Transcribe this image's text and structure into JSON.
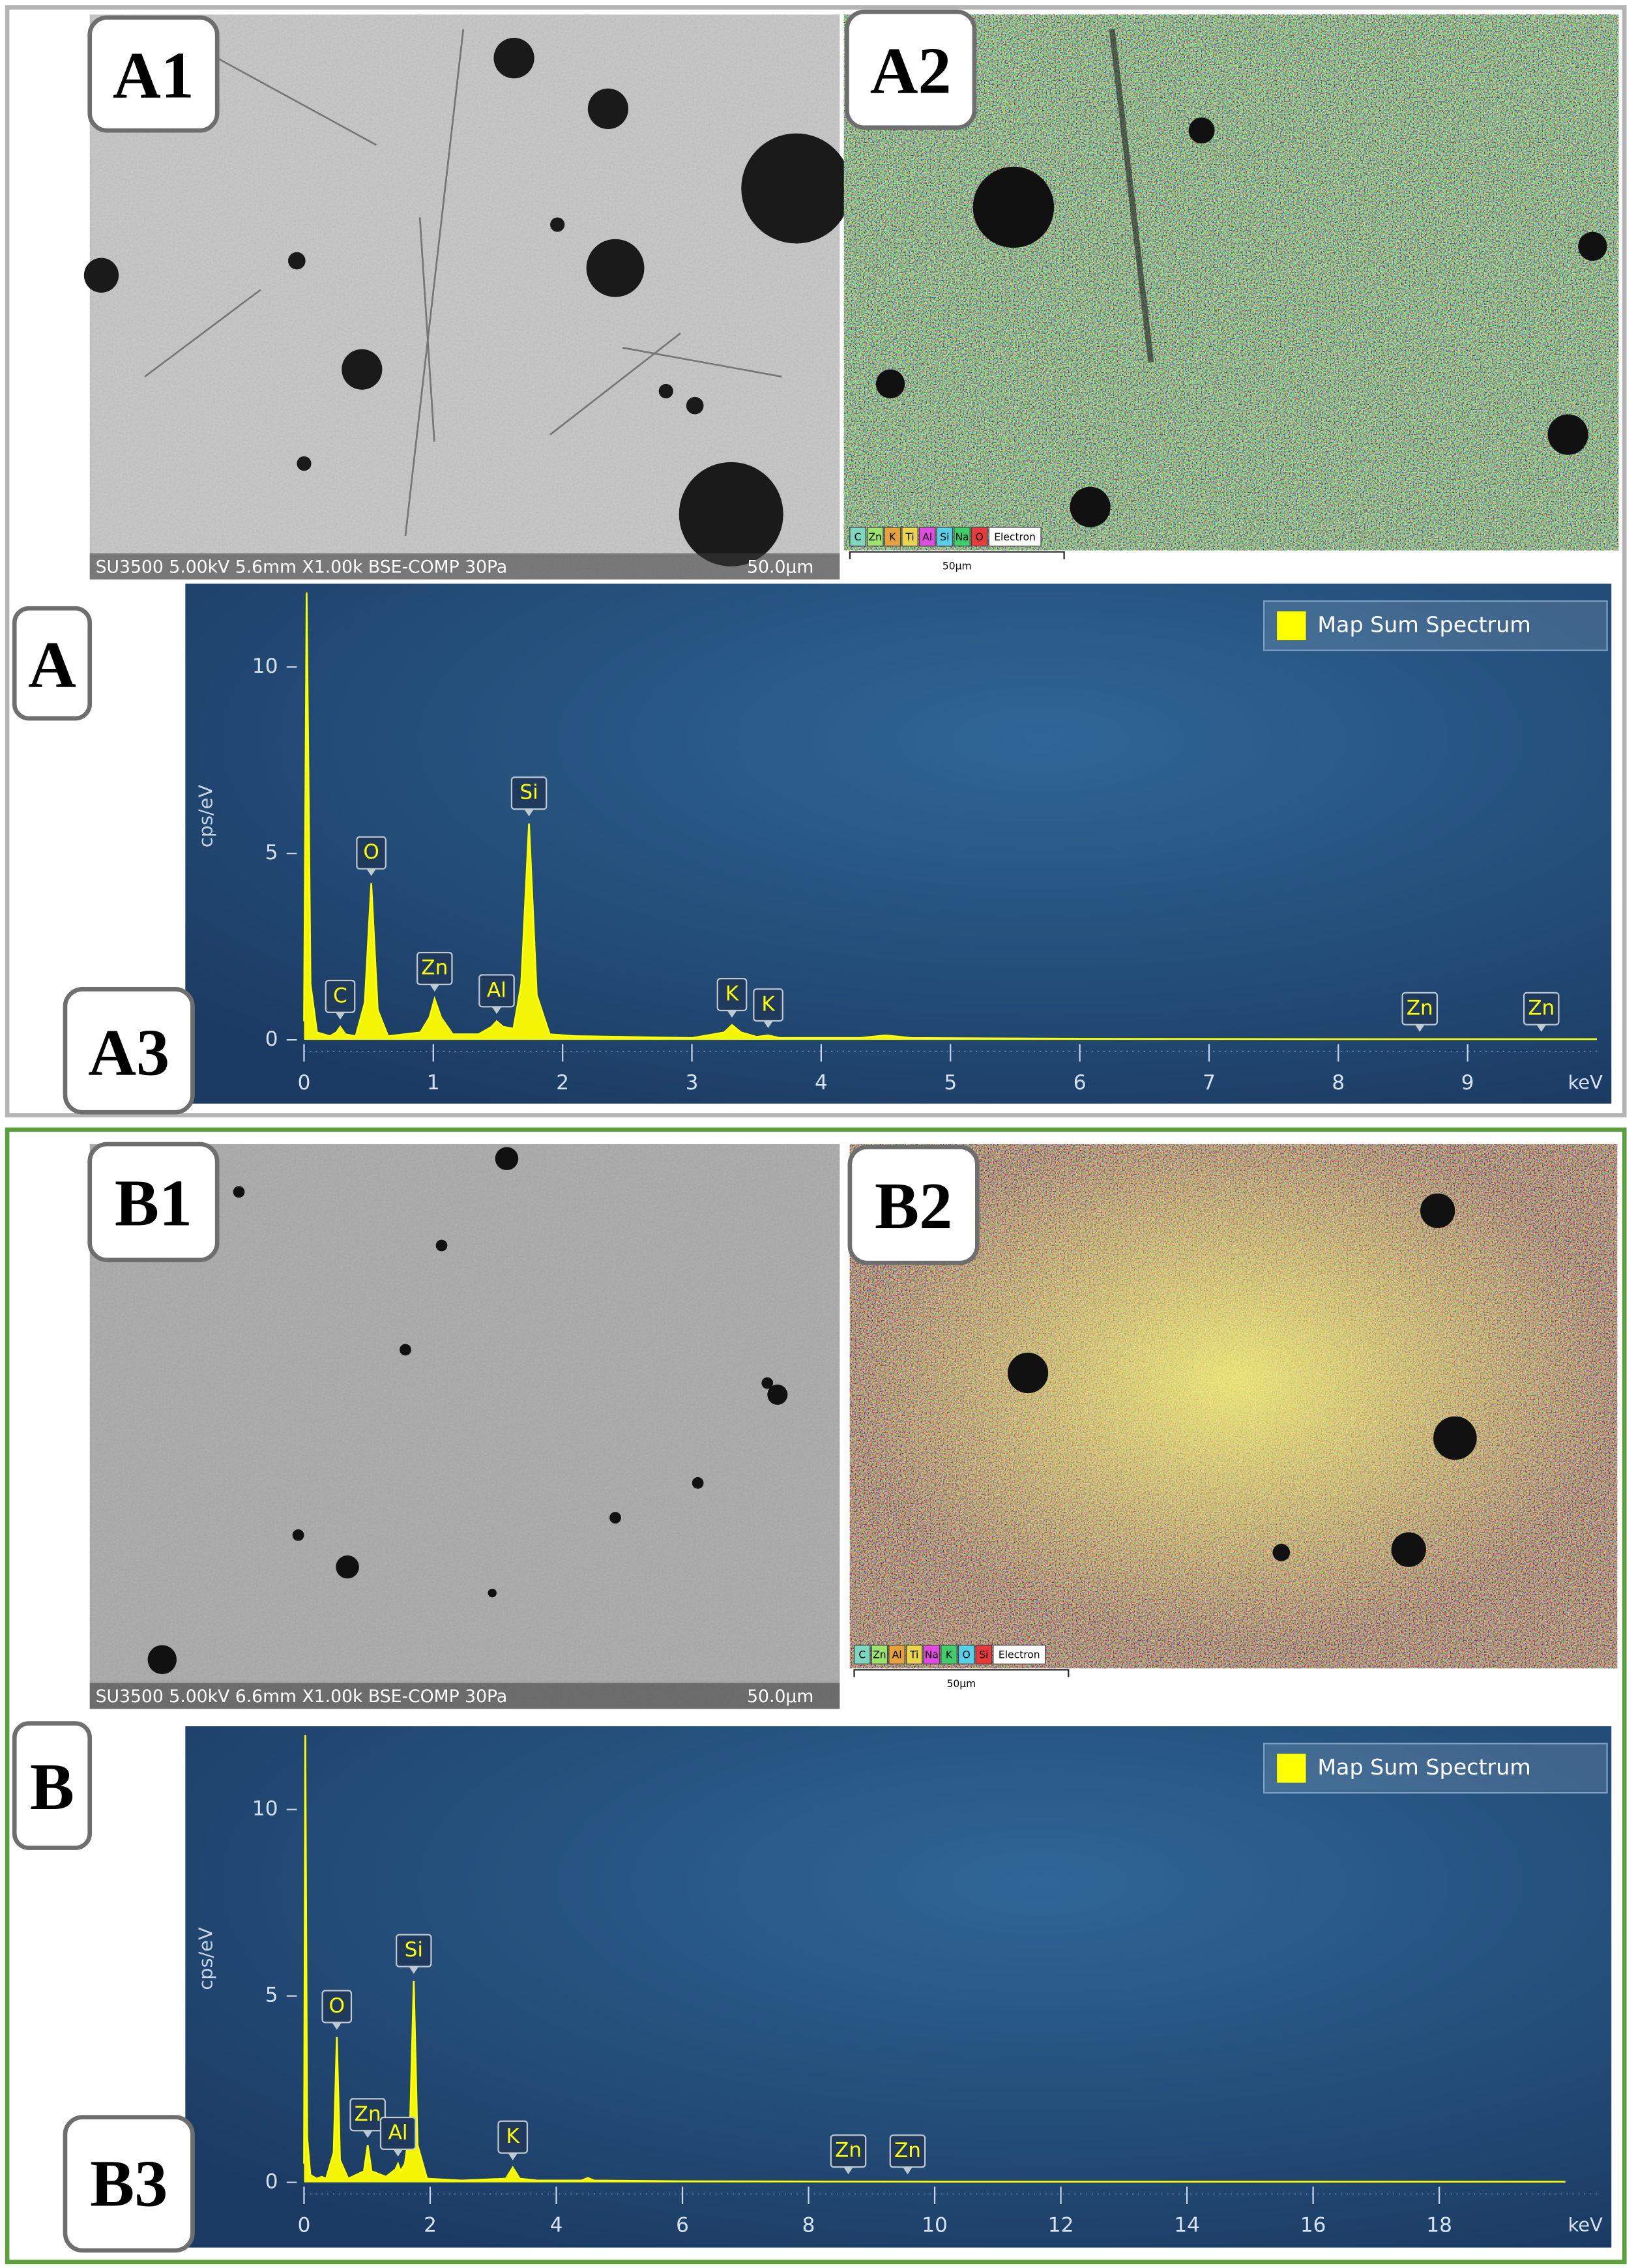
{
  "panel_labels": [
    "A1",
    "A2",
    "A",
    "A3",
    "B1",
    "B2",
    "B",
    "B3"
  ],
  "sem": [
    {
      "info": "SU3500 5.00kV 5.6mm X1.00k BSE-COMP 30Pa",
      "scale": "50.0μm"
    },
    {
      "info": "SU3500 5.00kV 6.6mm X1.00k BSE-COMP 30Pa",
      "scale": "50.0μm"
    }
  ],
  "maps": [
    {
      "elements": [
        "C",
        "Zn",
        "K",
        "Ti",
        "Al",
        "Si",
        "Na",
        "O",
        "Electron"
      ],
      "colors": [
        "#7fd6c0",
        "#9be36a",
        "#e8a23c",
        "#e9d44c",
        "#e04be0",
        "#56d0e8",
        "#3fcf6a",
        "#e83a3a",
        "#ffffff"
      ],
      "scale": "50μm"
    },
    {
      "elements": [
        "C",
        "Zn",
        "Al",
        "Ti",
        "Na",
        "K",
        "O",
        "Si",
        "Electron"
      ],
      "colors": [
        "#7fd6c0",
        "#9be36a",
        "#e8a23c",
        "#e9d44c",
        "#e04be0",
        "#3fcf6a",
        "#56d0e8",
        "#e83a3a",
        "#ffffff"
      ],
      "scale": "50μm"
    }
  ],
  "chart_data": [
    {
      "type": "line",
      "y_label": "cps/eV",
      "x_label": "keV",
      "x": [
        0,
        0.02,
        0.05,
        0.1,
        0.2,
        0.25,
        0.28,
        0.32,
        0.4,
        0.47,
        0.52,
        0.57,
        0.65,
        0.9,
        0.97,
        1.01,
        1.06,
        1.15,
        1.35,
        1.45,
        1.49,
        1.54,
        1.62,
        1.68,
        1.74,
        1.8,
        1.9,
        2.1,
        3.0,
        3.25,
        3.31,
        3.38,
        3.5,
        3.59,
        3.68,
        4.3,
        4.5,
        4.7,
        6,
        8,
        10
      ],
      "series": [
        {
          "name": "Map Sum Spectrum",
          "color": "#ffff00",
          "values": [
            0.5,
            12,
            1.5,
            0.2,
            0.1,
            0.2,
            0.35,
            0.15,
            0.1,
            1.0,
            4.2,
            0.8,
            0.1,
            0.2,
            0.6,
            1.1,
            0.6,
            0.15,
            0.15,
            0.35,
            0.5,
            0.35,
            0.3,
            1.5,
            5.8,
            1.2,
            0.15,
            0.1,
            0.05,
            0.2,
            0.4,
            0.2,
            0.08,
            0.12,
            0.05,
            0.05,
            0.12,
            0.05,
            0.03,
            0.02,
            0.02
          ]
        }
      ],
      "xlim": [
        0,
        10
      ],
      "ylim": [
        0,
        12
      ],
      "xticks": [
        0,
        1,
        2,
        3,
        4,
        5,
        6,
        7,
        8,
        9
      ],
      "yticks": [
        0,
        5,
        10
      ],
      "peak_labels": [
        {
          "label": "C",
          "x": 0.28
        },
        {
          "label": "O",
          "x": 0.52
        },
        {
          "label": "Zn",
          "x": 1.01
        },
        {
          "label": "Al",
          "x": 1.49
        },
        {
          "label": "Si",
          "x": 1.74
        },
        {
          "label": "K",
          "x": 3.31
        },
        {
          "label": "K",
          "x": 3.59
        },
        {
          "label": "Zn",
          "x": 8.63
        },
        {
          "label": "Zn",
          "x": 9.57
        }
      ]
    },
    {
      "type": "line",
      "y_label": "cps/eV",
      "x_label": "keV",
      "x": [
        0,
        0.02,
        0.05,
        0.1,
        0.2,
        0.28,
        0.35,
        0.47,
        0.52,
        0.57,
        0.7,
        0.95,
        1.01,
        1.07,
        1.3,
        1.45,
        1.49,
        1.53,
        1.6,
        1.68,
        1.74,
        1.8,
        1.95,
        2.5,
        3.2,
        3.31,
        3.42,
        3.7,
        4.4,
        4.5,
        4.6,
        6,
        10,
        15,
        20
      ],
      "series": [
        {
          "name": "Map Sum Spectrum",
          "color": "#ffff00",
          "values": [
            0.5,
            12,
            1.2,
            0.2,
            0.1,
            0.15,
            0.1,
            0.8,
            3.9,
            0.6,
            0.1,
            0.3,
            1.0,
            0.3,
            0.15,
            0.35,
            0.5,
            0.3,
            0.5,
            1.5,
            5.4,
            1.0,
            0.1,
            0.05,
            0.1,
            0.4,
            0.1,
            0.05,
            0.05,
            0.12,
            0.05,
            0.03,
            0.02,
            0.02,
            0.02
          ]
        }
      ],
      "xlim": [
        0,
        20.5
      ],
      "ylim": [
        0,
        12
      ],
      "xticks": [
        0,
        2,
        4,
        6,
        8,
        10,
        12,
        14,
        16,
        18
      ],
      "yticks": [
        0,
        5,
        10
      ],
      "peak_labels": [
        {
          "label": "O",
          "x": 0.52
        },
        {
          "label": "Zn",
          "x": 1.01
        },
        {
          "label": "Al",
          "x": 1.49
        },
        {
          "label": "Si",
          "x": 1.74
        },
        {
          "label": "K",
          "x": 3.31
        },
        {
          "label": "Zn",
          "x": 8.63
        },
        {
          "label": "Zn",
          "x": 9.57
        }
      ]
    }
  ]
}
